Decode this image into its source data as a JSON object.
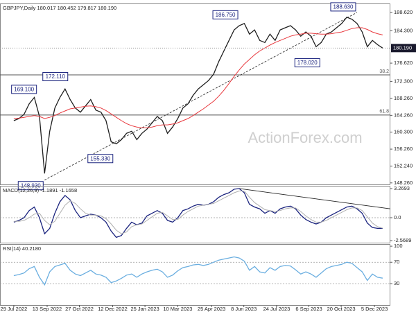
{
  "chart_data": [
    {
      "type": "line",
      "title": "GBPJPY,Daily  180.017 180.452 179.817 180.190",
      "watermark": "ActionForex.com",
      "xlim": [
        -2.7,
        73.5
      ],
      "ylim": [
        147.9,
        190.75
      ],
      "yticks": [
        {
          "value": 188.62,
          "label": "188.620"
        },
        {
          "value": 184.3,
          "label": "184.300"
        },
        {
          "value": 176.62,
          "label": "176.620"
        },
        {
          "value": 172.3,
          "label": "172.300"
        },
        {
          "value": 168.26,
          "label": "168.260"
        },
        {
          "value": 164.26,
          "label": "164.260"
        },
        {
          "value": 160.3,
          "label": "160.300"
        },
        {
          "value": 156.26,
          "label": "156.260"
        },
        {
          "value": 152.24,
          "label": "152.240"
        },
        {
          "value": 148.26,
          "label": "148.260"
        }
      ],
      "last": {
        "value": 180.19,
        "label": "180.190"
      },
      "hlines": [
        {
          "value": 173.85,
          "label": "38.2",
          "color": "#555555"
        },
        {
          "value": 164.34,
          "label": "61.8",
          "color": "#555555"
        }
      ],
      "trendlines": [
        {
          "from": [
            6,
            148.93
          ],
          "to": [
            67,
            188.63
          ],
          "color": "#333333",
          "dashed": true
        }
      ],
      "annotations": [
        {
          "text": "169.100",
          "x": 4.7,
          "value": 169.1
        },
        {
          "text": "148.930",
          "x": 6,
          "value": 148.93
        },
        {
          "text": "172.110",
          "x": 10.8,
          "value": 172.11
        },
        {
          "text": "155.330",
          "x": 19.6,
          "value": 155.33
        },
        {
          "text": "186.750",
          "x": 44,
          "value": 186.75
        },
        {
          "text": "178.020",
          "x": 60,
          "value": 178.02
        },
        {
          "text": "188.630",
          "x": 67,
          "value": 188.63
        }
      ],
      "series": [
        {
          "color": "#1e1e1e",
          "values": [
            163.0,
            163.5,
            164.5,
            167.0,
            168.5,
            164.0,
            150.5,
            160.5,
            166.0,
            168.5,
            170.5,
            168.0,
            166.0,
            165.0,
            166.5,
            168.0,
            165.5,
            165.0,
            163.0,
            158.0,
            157.5,
            158.5,
            160.0,
            160.5,
            158.5,
            160.0,
            161.0,
            162.5,
            164.0,
            163.0,
            160.0,
            161.5,
            163.5,
            166.0,
            167.0,
            169.0,
            170.5,
            171.5,
            172.5,
            174.0,
            177.0,
            179.5,
            182.0,
            184.5,
            185.5,
            186.0,
            183.5,
            184.5,
            182.0,
            181.5,
            183.5,
            182.0,
            184.5,
            185.0,
            185.5,
            184.5,
            183.0,
            184.0,
            183.0,
            180.5,
            181.5,
            183.5,
            184.0,
            185.0,
            186.0,
            187.5,
            187.0,
            186.0,
            184.0,
            180.5,
            182.0,
            181.0,
            180.19
          ]
        },
        {
          "color": "#e8383d",
          "values": [
            163.5,
            163.6,
            163.8,
            164.0,
            164.2,
            164.0,
            163.5,
            163.8,
            164.2,
            164.8,
            165.3,
            165.8,
            166.0,
            166.2,
            166.4,
            166.5,
            166.3,
            166.0,
            165.4,
            164.6,
            163.8,
            163.0,
            162.3,
            161.8,
            161.5,
            161.3,
            161.3,
            161.5,
            161.8,
            162.0,
            162.0,
            162.2,
            162.5,
            163.0,
            163.5,
            164.2,
            165.0,
            165.8,
            166.7,
            167.6,
            168.8,
            170.2,
            171.8,
            173.5,
            175.0,
            176.4,
            177.5,
            178.6,
            179.5,
            180.2,
            180.9,
            181.5,
            182.0,
            182.5,
            183.0,
            183.3,
            183.5,
            183.7,
            183.7,
            183.6,
            183.5,
            183.5,
            183.6,
            183.8,
            184.0,
            184.4,
            184.8,
            185.0,
            185.0,
            184.6,
            184.0,
            183.6,
            183.3
          ]
        }
      ]
    },
    {
      "type": "line",
      "title": "MACD(12,26,9) -1.1891 -1.1658",
      "xlim": [
        -2.7,
        73.5
      ],
      "ylim": [
        -2.8,
        3.58
      ],
      "yticks": [
        3.2693,
        {
          "value": 0,
          "label": "0.0"
        },
        -2.5689
      ],
      "hlines": [
        {
          "value": 0,
          "color": "#999999"
        }
      ],
      "trendlines": [
        {
          "from": [
            44,
            3.27
          ],
          "to": [
            73.5,
            1.0
          ],
          "color": "#222222",
          "dashed": false
        }
      ],
      "series": [
        {
          "color": "#1a237e",
          "values": [
            -0.5,
            -0.3,
            0.0,
            0.8,
            1.2,
            0.0,
            -1.8,
            -1.2,
            0.5,
            1.8,
            2.5,
            2.0,
            0.8,
            0.0,
            0.2,
            0.4,
            0.3,
            0.0,
            -0.5,
            -1.5,
            -2.2,
            -2.0,
            -1.2,
            -0.5,
            -0.8,
            -0.6,
            0.2,
            0.5,
            0.8,
            0.5,
            -0.3,
            -0.5,
            0.0,
            0.8,
            1.0,
            1.3,
            1.5,
            1.4,
            1.5,
            1.8,
            2.3,
            2.6,
            2.8,
            3.2,
            3.27,
            2.8,
            1.5,
            1.2,
            1.0,
            0.5,
            0.8,
            0.5,
            1.0,
            1.2,
            1.3,
            1.0,
            0.3,
            -0.2,
            -0.5,
            -0.7,
            -0.5,
            0.0,
            0.3,
            0.6,
            0.9,
            1.2,
            1.3,
            1.0,
            0.5,
            -0.6,
            -1.1,
            -1.2,
            -1.19
          ]
        },
        {
          "color": "#b0b0b0",
          "values": [
            -0.4,
            -0.4,
            -0.3,
            0.0,
            0.4,
            0.5,
            -0.3,
            -0.8,
            -0.4,
            0.5,
            1.4,
            1.9,
            1.6,
            1.0,
            0.5,
            0.3,
            0.3,
            0.2,
            -0.1,
            -0.7,
            -1.4,
            -1.8,
            -1.6,
            -1.0,
            -0.8,
            -0.7,
            -0.3,
            0.1,
            0.5,
            0.6,
            0.2,
            -0.2,
            -0.2,
            0.3,
            0.7,
            1.0,
            1.3,
            1.4,
            1.5,
            1.6,
            1.9,
            2.2,
            2.5,
            2.8,
            3.0,
            3.0,
            2.3,
            1.7,
            1.3,
            0.9,
            0.8,
            0.7,
            0.8,
            1.0,
            1.1,
            1.1,
            0.7,
            0.2,
            -0.2,
            -0.5,
            -0.5,
            -0.3,
            0.0,
            0.3,
            0.6,
            0.9,
            1.1,
            1.1,
            0.8,
            0.1,
            -0.6,
            -1.0,
            -1.17
          ]
        }
      ]
    },
    {
      "type": "line",
      "title": "RSI(14) 40.2180",
      "xlim": [
        -2.7,
        73.5
      ],
      "ylim": [
        -10,
        104
      ],
      "yticks": [
        100,
        70,
        30
      ],
      "hlines": [
        {
          "value": 70,
          "color": "#999999"
        },
        {
          "value": 30,
          "color": "#999999"
        }
      ],
      "xticks": [
        {
          "value": 0,
          "label": "29 Jul 2022"
        },
        {
          "value": 6.5,
          "label": "13 Sep 2022"
        },
        {
          "value": 12.8,
          "label": "27 Oct 2022"
        },
        {
          "value": 19.3,
          "label": "12 Dec 2022"
        },
        {
          "value": 25.6,
          "label": "25 Jan 2023"
        },
        {
          "value": 32,
          "label": "10 Mar 2023"
        },
        {
          "value": 38.6,
          "label": "25 Apr 2023"
        },
        {
          "value": 44.9,
          "label": "8 Jun 2023"
        },
        {
          "value": 51.3,
          "label": "24 Jul 2023"
        },
        {
          "value": 57.6,
          "label": "6 Sep 2023"
        },
        {
          "value": 63.9,
          "label": "20 Oct 2023"
        },
        {
          "value": 70.4,
          "label": "5 Dec 2023"
        }
      ],
      "series": [
        {
          "color": "#6aaee0",
          "values": [
            45,
            47,
            50,
            58,
            62,
            42,
            28,
            52,
            62,
            65,
            68,
            55,
            48,
            45,
            50,
            55,
            48,
            46,
            42,
            32,
            35,
            40,
            46,
            48,
            42,
            48,
            52,
            55,
            57,
            52,
            42,
            46,
            54,
            60,
            62,
            65,
            66,
            64,
            66,
            70,
            74,
            76,
            78,
            80,
            78,
            72,
            55,
            62,
            52,
            50,
            60,
            55,
            62,
            64,
            63,
            56,
            48,
            52,
            48,
            42,
            50,
            58,
            62,
            64,
            66,
            70,
            68,
            60,
            52,
            36,
            48,
            42,
            40.218
          ]
        }
      ]
    }
  ]
}
